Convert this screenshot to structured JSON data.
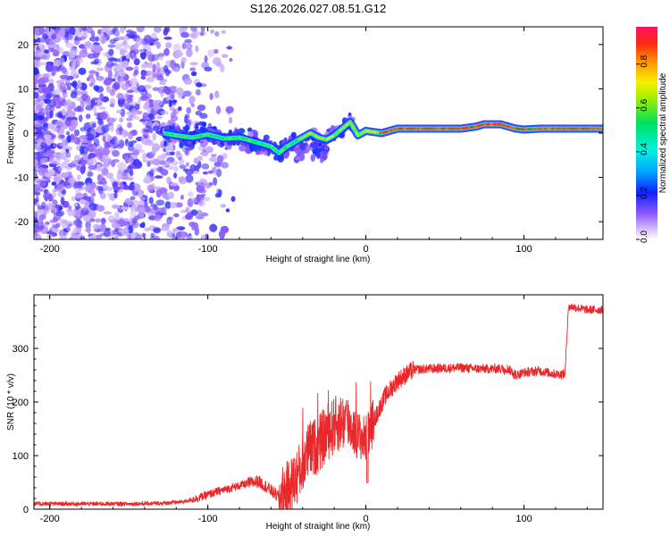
{
  "title": "S126.2026.027.08.51.G12",
  "chart_data": [
    {
      "type": "heatmap",
      "xlabel": "Height of straight line (km)",
      "ylabel": "Frequency (Hz)",
      "xlim": [
        -210,
        150
      ],
      "ylim": [
        -24,
        24
      ],
      "xticks": [
        -200,
        -100,
        0,
        100
      ],
      "xtick_labels": [
        "-200",
        "-100",
        "0",
        "100"
      ],
      "yticks": [
        -20,
        -10,
        0,
        10,
        20
      ],
      "ytick_labels": [
        "-20",
        "-10",
        "0",
        "10",
        "20"
      ],
      "colorbar": {
        "label": "Normalized spectral amplitude",
        "range": [
          0,
          1
        ],
        "ticks": [
          0.0,
          0.2,
          0.4,
          0.6,
          0.8
        ],
        "tick_labels": [
          "0.0",
          "0.2",
          "0.4",
          "0.6",
          "0.8"
        ]
      },
      "ridge": {
        "x": [
          -128,
          -120,
          -110,
          -100,
          -90,
          -80,
          -70,
          -60,
          -55,
          -50,
          -45,
          -40,
          -35,
          -30,
          -25,
          -20,
          -15,
          -10,
          -5,
          0,
          10,
          20,
          40,
          60,
          70,
          75,
          80,
          85,
          90,
          95,
          100,
          110,
          120,
          130,
          140,
          150
        ],
        "y": [
          0.0,
          -0.5,
          -1.0,
          -0.3,
          -1.2,
          -1.0,
          -2.0,
          -3.0,
          -4.5,
          -3.0,
          -2.0,
          -1.0,
          0.0,
          -1.0,
          -1.5,
          -0.5,
          1.0,
          2.5,
          -0.5,
          0.5,
          0.0,
          1.0,
          1.0,
          1.0,
          1.5,
          2.0,
          2.0,
          2.0,
          1.5,
          1.0,
          0.8,
          1.0,
          1.0,
          1.0,
          1.0,
          1.0
        ]
      }
    },
    {
      "type": "line",
      "xlabel": "Height of straight line (km)",
      "ylabel": "SNR (10 * v/v)",
      "xlim": [
        -210,
        150
      ],
      "ylim": [
        0,
        400
      ],
      "xticks": [
        -200,
        -100,
        0,
        100
      ],
      "xtick_labels": [
        "-200",
        "-100",
        "0",
        "100"
      ],
      "yticks": [
        0,
        100,
        200,
        300
      ],
      "ytick_labels": [
        "0",
        "100",
        "200",
        "300"
      ],
      "color": "#e8282a",
      "series": [
        {
          "name": "SNR",
          "x": [
            -210,
            -190,
            -170,
            -150,
            -130,
            -115,
            -105,
            -95,
            -85,
            -75,
            -68,
            -62,
            -55,
            -48,
            -42,
            -36,
            -30,
            -24,
            -18,
            -12,
            -6,
            0,
            5,
            12,
            20,
            30,
            40,
            50,
            60,
            70,
            80,
            90,
            95,
            100,
            110,
            120,
            126,
            128,
            130,
            140,
            150
          ],
          "y": [
            10,
            10,
            10,
            10,
            11,
            14,
            22,
            32,
            40,
            48,
            52,
            40,
            22,
            40,
            70,
            110,
            120,
            145,
            160,
            165,
            140,
            130,
            165,
            210,
            240,
            260,
            262,
            263,
            264,
            262,
            262,
            262,
            250,
            255,
            258,
            252,
            252,
            375,
            378,
            372,
            372
          ]
        }
      ]
    }
  ]
}
